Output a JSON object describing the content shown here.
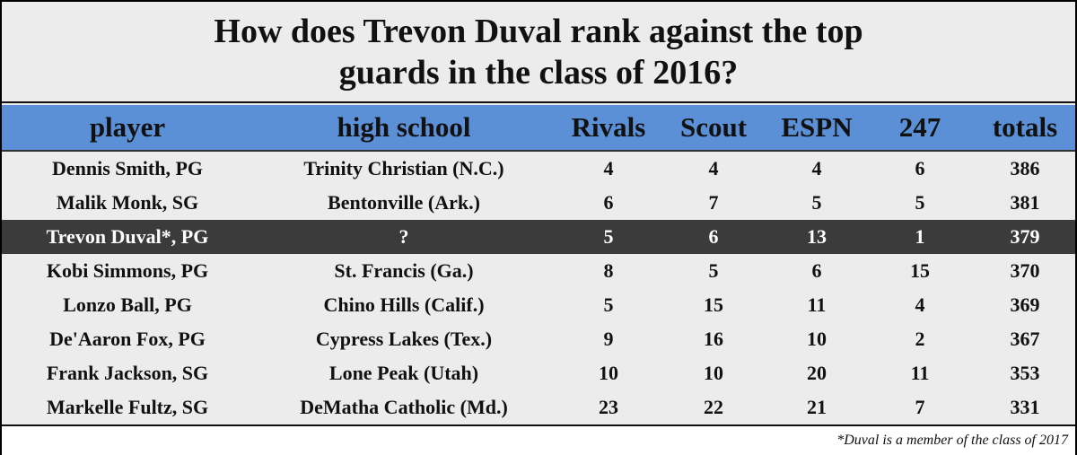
{
  "header": {
    "title_lines": [
      "How does Trevon Duval rank against the top",
      "guards in the class of 2016?"
    ]
  },
  "table": {
    "columns": [
      "player",
      "high school",
      "Rivals",
      "Scout",
      "ESPN",
      "247",
      "totals"
    ],
    "rows": [
      [
        "Dennis Smith, PG",
        "Trinity Christian (N.C.)",
        4,
        4,
        4,
        6,
        386
      ],
      [
        "Malik Monk, SG",
        "Bentonville (Ark.)",
        6,
        7,
        5,
        5,
        381
      ],
      [
        "Trevon Duval*, PG",
        "?",
        5,
        6,
        13,
        1,
        379
      ],
      [
        "Kobi Simmons, PG",
        "St. Francis (Ga.)",
        8,
        5,
        6,
        15,
        370
      ],
      [
        "Lonzo Ball, PG",
        "Chino Hills (Calif.)",
        5,
        15,
        11,
        4,
        369
      ],
      [
        "De'Aaron Fox, PG",
        "Cypress Lakes (Tex.)",
        9,
        16,
        10,
        2,
        367
      ],
      [
        "Frank Jackson, SG",
        "Lone Peak (Utah)",
        10,
        10,
        20,
        11,
        353
      ],
      [
        "Markelle Fultz, SG",
        "DeMatha Catholic (Md.)",
        23,
        22,
        21,
        7,
        331
      ]
    ]
  },
  "footnote": "*Duval is a member of the class of 2017"
}
